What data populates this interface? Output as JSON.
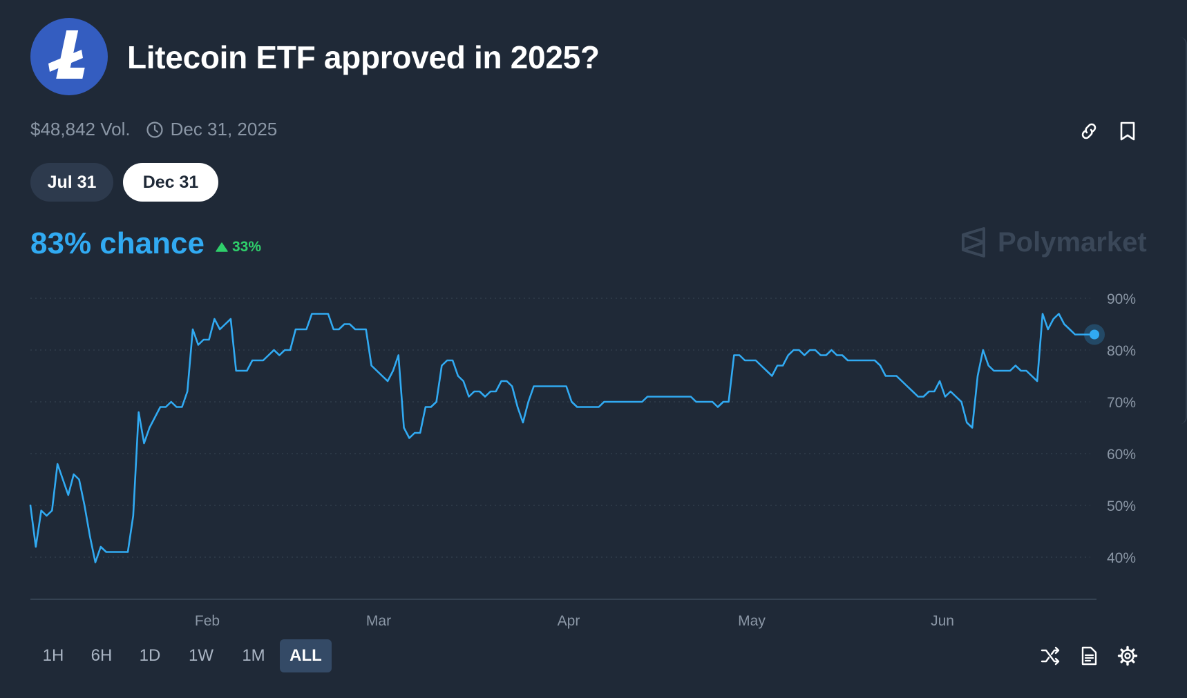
{
  "header": {
    "title": "Litecoin ETF approved in 2025?",
    "logo_icon": "litecoin-logo",
    "volume": "$48,842 Vol.",
    "end_date": "Dec 31, 2025"
  },
  "date_pills": [
    {
      "label": "Jul 31",
      "selected": false
    },
    {
      "label": "Dec 31",
      "selected": true
    }
  ],
  "summary": {
    "chance": "83% chance",
    "delta": "33%",
    "delta_direction": "up"
  },
  "brand": {
    "name": "Polymarket"
  },
  "timeframes": {
    "options": [
      "1H",
      "6H",
      "1D",
      "1W",
      "1M",
      "ALL"
    ],
    "selected": "ALL"
  },
  "toolbar_icons": [
    "link-icon",
    "bookmark-icon",
    "shuffle-icon",
    "document-icon",
    "gear-icon"
  ],
  "colors": {
    "background": "#1f2937",
    "accent": "#31aaf2",
    "positive": "#2fcf6b",
    "logo": "#345dc0"
  },
  "chart_data": {
    "type": "line",
    "x_tick_labels": [
      "Feb",
      "Mar",
      "Apr",
      "May",
      "Jun"
    ],
    "y_tick_labels": [
      "90%",
      "80%",
      "70%",
      "60%",
      "50%",
      "40%"
    ],
    "ylim": [
      30,
      90
    ],
    "grid": true,
    "series": [
      {
        "values": [
          50,
          42,
          49,
          48,
          49,
          58,
          55,
          52,
          56,
          55,
          50,
          44,
          39,
          42,
          41,
          41,
          41,
          41,
          41,
          48,
          68,
          62,
          65,
          67,
          69,
          69,
          70,
          69,
          69,
          72,
          84,
          81,
          82,
          82,
          86,
          84,
          85,
          86,
          76,
          76,
          76,
          78,
          78,
          78,
          79,
          80,
          79,
          80,
          80,
          84,
          84,
          84,
          87,
          87,
          87,
          87,
          84,
          84,
          85,
          85,
          84,
          84,
          84,
          77,
          76,
          75,
          74,
          76,
          79,
          65,
          63,
          64,
          64,
          69,
          69,
          70,
          77,
          78,
          78,
          75,
          74,
          71,
          72,
          72,
          71,
          72,
          72,
          74,
          74,
          73,
          69,
          66,
          70,
          73,
          73,
          73,
          73,
          73,
          73,
          73,
          70,
          69,
          69,
          69,
          69,
          69,
          70,
          70,
          70,
          70,
          70,
          70,
          70,
          70,
          71,
          71,
          71,
          71,
          71,
          71,
          71,
          71,
          71,
          70,
          70,
          70,
          70,
          69,
          70,
          70,
          79,
          79,
          78,
          78,
          78,
          77,
          76,
          75,
          77,
          77,
          79,
          80,
          80,
          79,
          80,
          80,
          79,
          79,
          80,
          79,
          79,
          78,
          78,
          78,
          78,
          78,
          78,
          77,
          75,
          75,
          75,
          74,
          73,
          72,
          71,
          71,
          72,
          72,
          74,
          71,
          72,
          71,
          70,
          66,
          65,
          75,
          80,
          77,
          76,
          76,
          76,
          76,
          77,
          76,
          76,
          75,
          74,
          87,
          84,
          86,
          87,
          85,
          84,
          83
        ]
      }
    ],
    "last_value": 83
  }
}
